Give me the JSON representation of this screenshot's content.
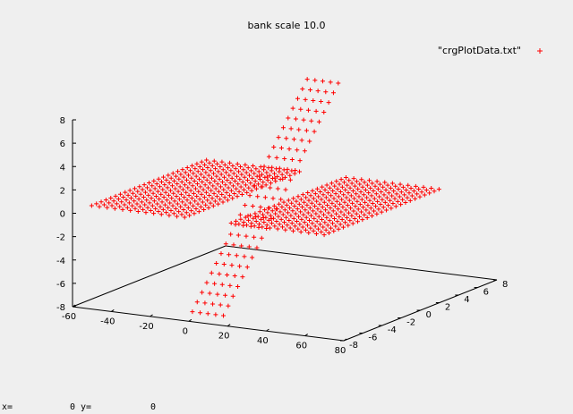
{
  "chart_data": {
    "type": "scatter",
    "subtype": "3d-surface-points",
    "title": "bank scale 10.0",
    "legend": {
      "entries": [
        "\"crgPlotData.txt\""
      ],
      "position": "top-right",
      "marker": "+"
    },
    "series": [
      {
        "name": "\"crgPlotData.txt\"",
        "color": "#ff0000",
        "marker": "+",
        "grid": {
          "x_range": [
            -60,
            60
          ],
          "y_range": [
            -6,
            6
          ],
          "x_step": 4,
          "y_step": 1
        },
        "z_description": "flat plane z=0 with a banked strip near x=0 rising from about -8 at y=-6 to about +8 at y=+6"
      }
    ],
    "axes": {
      "x": {
        "range": [
          -60,
          80
        ],
        "ticks": [
          "-60",
          "-40",
          "-20",
          "0",
          "20",
          "40",
          "60",
          "80"
        ]
      },
      "y": {
        "range": [
          -8,
          8
        ],
        "ticks": [
          "-8",
          "-6",
          "-4",
          "-2",
          "0",
          "2",
          "4",
          "6",
          "8"
        ]
      },
      "z": {
        "range": [
          -8,
          8
        ],
        "ticks": [
          "8",
          "6",
          "4",
          "2",
          "0",
          "-2",
          "-4",
          "-6",
          "-8"
        ]
      }
    },
    "grid": false
  },
  "status": {
    "x_label": "x=",
    "x_value": "0",
    "y_label": "y=",
    "y_value": "0"
  }
}
